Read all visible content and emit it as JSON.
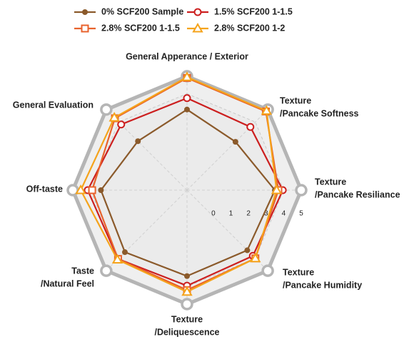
{
  "chart_data": {
    "type": "radar",
    "categories": [
      [
        "General Apperance / Exterior"
      ],
      [
        "Texture",
        "/Pancake Softness"
      ],
      [
        "Texture",
        "/Pancake Resiliance"
      ],
      [
        "Texture",
        "/Pancake Humidity"
      ],
      [
        "Texture",
        "/Deliquescence"
      ],
      [
        "Taste",
        "/Natural Feel"
      ],
      [
        "Off-taste"
      ],
      [
        "General Evaluation"
      ]
    ],
    "ylim": [
      -1.5,
      5
    ],
    "yticks": [
      0,
      1,
      2,
      3,
      4,
      5
    ],
    "grid": true,
    "legend": "top",
    "series": [
      {
        "name": "0% SCF200 Sample",
        "color": "#8b5a2b",
        "marker": "dot",
        "values": [
          3.1,
          2.4,
          3.5,
          3.35,
          3.4,
          3.5,
          3.4,
          2.45
        ]
      },
      {
        "name": "1.5% SCF200 1-1.5",
        "color": "#cc1f1f",
        "marker": "circle",
        "values": [
          3.75,
          3.6,
          3.95,
          3.8,
          3.95,
          4.05,
          4.15,
          3.8
        ]
      },
      {
        "name": "2.8% SCF200 1-1.5",
        "color": "#e8622c",
        "marker": "square",
        "values": [
          4.9,
          4.85,
          3.7,
          4.0,
          4.2,
          4.05,
          3.9,
          4.3
        ]
      },
      {
        "name": "2.8% SCF200 1-2",
        "color": "#f5a31b",
        "marker": "triangle",
        "values": [
          4.95,
          4.9,
          3.6,
          4.0,
          4.3,
          4.1,
          4.55,
          4.35
        ]
      }
    ]
  }
}
